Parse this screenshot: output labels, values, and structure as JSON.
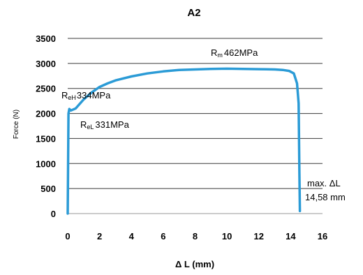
{
  "chart_data": {
    "type": "line",
    "title": "A2",
    "xlabel": "Δ L (mm)",
    "ylabel": "Force (N)",
    "xlim": [
      0,
      16
    ],
    "ylim": [
      0,
      3500
    ],
    "xticks": [
      "0",
      "2",
      "4",
      "6",
      "8",
      "10",
      "12",
      "14",
      "16"
    ],
    "yticks": [
      "0",
      "500",
      "1000",
      "1500",
      "2000",
      "2500",
      "3000",
      "3500"
    ],
    "grid": "horizontal",
    "series": [
      {
        "color": "#2b9bd6",
        "x": [
          0,
          0.05,
          0.1,
          0.2,
          0.5,
          1.0,
          1.5,
          2.0,
          2.5,
          3.0,
          4.0,
          5.0,
          6.0,
          7.0,
          8.0,
          9.0,
          10.0,
          11.0,
          12.0,
          13.0,
          13.5,
          13.9,
          14.2,
          14.4,
          14.5,
          14.55,
          14.58
        ],
        "y": [
          0,
          2000,
          2090,
          2060,
          2100,
          2280,
          2420,
          2530,
          2600,
          2660,
          2740,
          2800,
          2840,
          2870,
          2880,
          2890,
          2895,
          2890,
          2885,
          2880,
          2870,
          2850,
          2800,
          2600,
          2200,
          800,
          50
        ]
      }
    ],
    "annotations": {
      "rm": {
        "symbol": "R",
        "sub": "m",
        "value": "462MPa",
        "x": 9.6,
        "y": 3000
      },
      "reh": {
        "symbol": "R",
        "sub": "eH",
        "value": "334MPa",
        "x": -0.4,
        "y": 2400
      },
      "rel": {
        "symbol": "R",
        "sub": "eL",
        "value": "331MPa",
        "x": 0.8,
        "y": 1800
      },
      "max_line1": "max. ΔL",
      "max_line2": "14,58 mm"
    }
  }
}
